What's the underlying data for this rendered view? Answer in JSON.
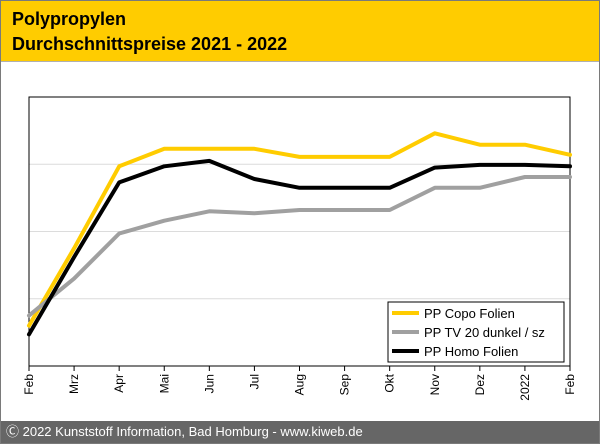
{
  "header": {
    "title_line1": "Polypropylen",
    "title_line2": "Durchschnittspreise 2021 - 2022",
    "background": "#ffcc00"
  },
  "footer": {
    "text": "Ⓒ 2022 Kunststoff Information, Bad Homburg - www.kiweb.de",
    "background": "#666666"
  },
  "chart_data": {
    "type": "line",
    "title": "Polypropylen Durchschnittspreise 2021 - 2022",
    "xlabel": "",
    "ylabel": "",
    "categories": [
      "Feb",
      "Mrz",
      "Apr",
      "Mai",
      "Jun",
      "Jul",
      "Aug",
      "Sep",
      "Okt",
      "Nov",
      "Dez",
      "2022",
      "Feb"
    ],
    "ylim": [
      0,
      4
    ],
    "grid": true,
    "legend_position": "bottom-right",
    "series": [
      {
        "name": "PP Copo Folien",
        "color": "#ffcc00",
        "values": [
          0.6,
          1.75,
          2.97,
          3.23,
          3.23,
          3.23,
          3.11,
          3.11,
          3.11,
          3.46,
          3.29,
          3.29,
          3.14
        ]
      },
      {
        "name": "PP TV 20 dunkel / sz",
        "color": "#a0a0a0",
        "values": [
          0.75,
          1.3,
          1.97,
          2.16,
          2.3,
          2.27,
          2.32,
          2.32,
          2.32,
          2.65,
          2.65,
          2.81,
          2.81
        ]
      },
      {
        "name": "PP Homo Folien",
        "color": "#000000",
        "values": [
          0.47,
          1.62,
          2.73,
          2.97,
          3.05,
          2.78,
          2.65,
          2.65,
          2.65,
          2.95,
          2.99,
          2.99,
          2.97
        ]
      }
    ]
  }
}
